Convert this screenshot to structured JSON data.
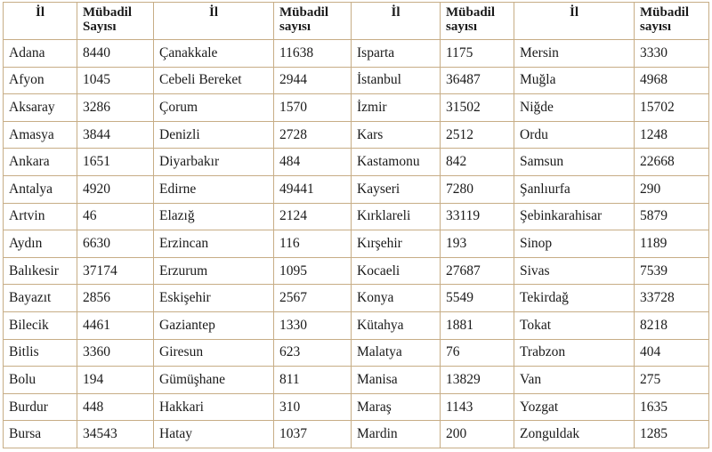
{
  "table": {
    "headers": [
      {
        "il": "İl",
        "count_line1": "Mübadil",
        "count_line2": "Sayısı"
      },
      {
        "il": "İl",
        "count_line1": "Mübadil",
        "count_line2": "sayısı"
      },
      {
        "il": "İl",
        "count_line1": "Mübadil",
        "count_line2": "sayısı"
      },
      {
        "il": "İl",
        "count_line1": "Mübadil",
        "count_line2": "sayısı"
      }
    ],
    "rows": [
      [
        "Adana",
        "8440",
        "Çanakkale",
        "11638",
        "Isparta",
        "1175",
        "Mersin",
        "3330"
      ],
      [
        "Afyon",
        "1045",
        "Cebeli Bereket",
        "2944",
        "İstanbul",
        "36487",
        "Muğla",
        "4968"
      ],
      [
        "Aksaray",
        "3286",
        "Çorum",
        "1570",
        "İzmir",
        "31502",
        "Niğde",
        "15702"
      ],
      [
        "Amasya",
        "3844",
        "Denizli",
        "2728",
        "Kars",
        "2512",
        "Ordu",
        "1248"
      ],
      [
        "Ankara",
        "1651",
        "Diyarbakır",
        "484",
        "Kastamonu",
        "842",
        "Samsun",
        "22668"
      ],
      [
        "Antalya",
        "4920",
        "Edirne",
        "49441",
        "Kayseri",
        "7280",
        "Şanlıurfa",
        "290"
      ],
      [
        "Artvin",
        "46",
        "Elazığ",
        "2124",
        "Kırklareli",
        "33119",
        "Şebinkarahisar",
        "5879"
      ],
      [
        "Aydın",
        "6630",
        "Erzincan",
        "116",
        "Kırşehir",
        "193",
        "Sinop",
        "1189"
      ],
      [
        "Balıkesir",
        "37174",
        "Erzurum",
        "1095",
        "Kocaeli",
        "27687",
        "Sivas",
        "7539"
      ],
      [
        "Bayazıt",
        "2856",
        "Eskişehir",
        "2567",
        "Konya",
        "5549",
        "Tekirdağ",
        "33728"
      ],
      [
        "Bilecik",
        "4461",
        "Gaziantep",
        "1330",
        "Kütahya",
        "1881",
        "Tokat",
        "8218"
      ],
      [
        "Bitlis",
        "3360",
        "Giresun",
        "623",
        "Malatya",
        "76",
        "Trabzon",
        "404"
      ],
      [
        "Bolu",
        "194",
        "Gümüşhane",
        "811",
        "Manisa",
        "13829",
        "Van",
        "275"
      ],
      [
        "Burdur",
        "448",
        "Hakkari",
        "310",
        "Maraş",
        "1143",
        "Yozgat",
        "1635"
      ],
      [
        "Bursa",
        "34543",
        "Hatay",
        "1037",
        "Mardin",
        "200",
        "Zonguldak",
        "1285"
      ]
    ]
  }
}
